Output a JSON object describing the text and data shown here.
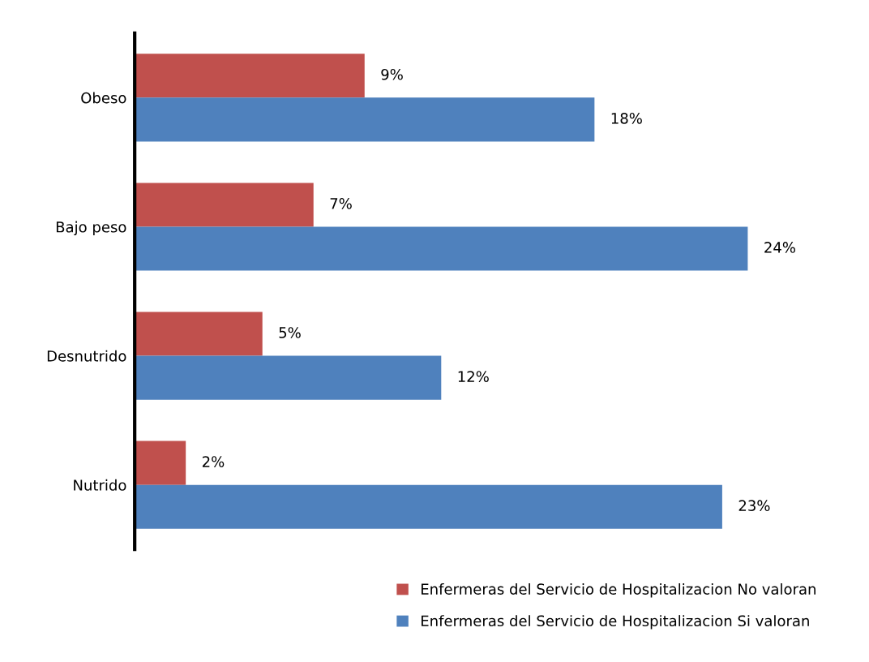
{
  "chart_data": {
    "type": "bar",
    "orientation": "horizontal",
    "categories": [
      "Obeso",
      "Bajo peso",
      "Desnutrido",
      "Nutrido"
    ],
    "series": [
      {
        "name": "Enfermeras del Servicio de Hospitalizacion No valoran",
        "color": "#c0504d",
        "values": [
          9,
          7,
          5,
          2
        ],
        "value_labels": [
          "9%",
          "7%",
          "5%",
          "2%"
        ]
      },
      {
        "name": "Enfermeras del Servicio de Hospitalizacion Si valoran",
        "color": "#4f81bd",
        "values": [
          18,
          24,
          12,
          23
        ],
        "value_labels": [
          "18%",
          "24%",
          "12%",
          "23%"
        ]
      }
    ],
    "tick_labels": "y",
    "grid": false,
    "legend": "bottom"
  }
}
